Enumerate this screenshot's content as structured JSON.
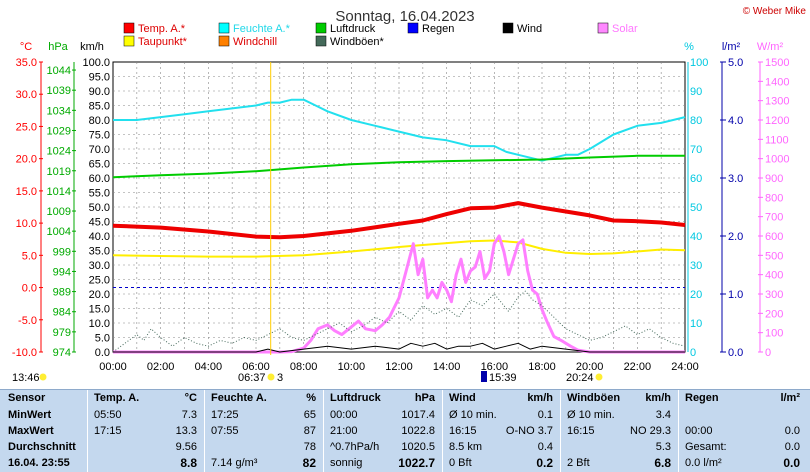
{
  "chart_data": {
    "type": "line",
    "title": "Sonntag, 16.04.2023",
    "credit": "© Weber Mike",
    "x_range_hours": [
      0,
      24
    ],
    "x_tick_labels": [
      "00:00",
      "02:00",
      "04:00",
      "06:00",
      "08:00",
      "10:00",
      "12:00",
      "14:00",
      "16:00",
      "18:00",
      "20:00",
      "22:00",
      "24:00"
    ],
    "axes": {
      "temp": {
        "unit": "°C",
        "range": [
          -10,
          35
        ],
        "ticks": [
          "35.0",
          "30.0",
          "25.0",
          "20.0",
          "15.0",
          "10.0",
          "5.0",
          "0.0",
          "-5.0",
          "-10.0"
        ],
        "color": "#ff0000"
      },
      "pressure": {
        "unit": "hPa",
        "range": [
          974,
          1046
        ],
        "ticks": [
          "1044",
          "1039",
          "1034",
          "1029",
          "1024",
          "1019",
          "1014",
          "1009",
          "1004",
          "999",
          "994",
          "989",
          "984",
          "979",
          "974"
        ],
        "color": "#00bb00"
      },
      "wind": {
        "unit": "km/h",
        "range": [
          0,
          100
        ],
        "ticks": [
          "100.0",
          "95.0",
          "90.0",
          "85.0",
          "80.0",
          "75.0",
          "70.0",
          "65.0",
          "60.0",
          "55.0",
          "50.0",
          "45.0",
          "40.0",
          "35.0",
          "30.0",
          "25.0",
          "20.0",
          "15.0",
          "10.0",
          "5.0",
          "0.0"
        ],
        "color": "#000000"
      },
      "humidity": {
        "unit": "%",
        "range": [
          0,
          100
        ],
        "ticks": [
          "100",
          "90",
          "80",
          "70",
          "60",
          "50",
          "40",
          "30",
          "20",
          "10",
          "0"
        ],
        "color": "#00c8e0"
      },
      "rain": {
        "unit": "l/m²",
        "range": [
          0,
          5
        ],
        "ticks": [
          "5.0",
          "4.0",
          "3.0",
          "2.0",
          "1.0",
          "0.0"
        ],
        "color": "#0000aa"
      },
      "solar": {
        "unit": "W/m²",
        "range": [
          0,
          1500
        ],
        "ticks": [
          "1500",
          "1400",
          "1300",
          "1200",
          "1100",
          "1000",
          "900",
          "800",
          "700",
          "600",
          "500",
          "400",
          "300",
          "200",
          "100",
          "0"
        ],
        "color": "#ff66ff"
      }
    },
    "legend": [
      {
        "label": "Temp. A.*",
        "color": "#ff0000"
      },
      {
        "label": "Feuchte A.*",
        "color": "#00ffff"
      },
      {
        "label": "Luftdruck",
        "color": "#00cc00"
      },
      {
        "label": "Regen",
        "color": "#0000ff"
      },
      {
        "label": "Wind",
        "color": "#000000"
      },
      {
        "label": "Solar",
        "color": "#ff88ff"
      },
      {
        "label": "Taupunkt*",
        "color": "#ffff00"
      },
      {
        "label": "Windchill",
        "color": "#ff8000"
      },
      {
        "label": "Windböen*",
        "color": "#446a5a"
      }
    ],
    "freezing_line_temp": 0,
    "series": [
      {
        "name": "Temp. A.*",
        "axis": "temp",
        "color": "#ee0000",
        "x": [
          0,
          2,
          4,
          6,
          7,
          8,
          10,
          12,
          13,
          14,
          15,
          16,
          17,
          18,
          19,
          20,
          21,
          22,
          23,
          24
        ],
        "values": [
          9.6,
          9.3,
          8.7,
          7.9,
          7.8,
          8.0,
          8.8,
          9.9,
          10.4,
          11.4,
          12.3,
          12.4,
          13.1,
          12.4,
          11.8,
          11.2,
          10.4,
          10.3,
          10.1,
          9.7
        ]
      },
      {
        "name": "Feuchte A.*",
        "axis": "humidity",
        "color": "#22e0ee",
        "x": [
          0,
          1,
          2,
          3,
          4,
          5,
          6,
          6.5,
          7,
          7.5,
          8,
          8.5,
          9,
          10,
          11,
          12,
          13,
          14,
          15,
          16,
          16.5,
          17,
          17.5,
          18,
          18.5,
          19,
          19.5,
          20,
          21,
          22,
          23,
          24
        ],
        "values": [
          80,
          80,
          81,
          82,
          83,
          84,
          85,
          86,
          86,
          87,
          87,
          85,
          83,
          80,
          78,
          76,
          74,
          73,
          71,
          71,
          69,
          68,
          67,
          66,
          67,
          68,
          68,
          70,
          75,
          78,
          79,
          81
        ]
      },
      {
        "name": "Luftdruck",
        "axis": "pressure",
        "color": "#00cc00",
        "x": [
          0,
          2,
          4,
          6,
          8,
          10,
          12,
          14,
          16,
          18,
          20,
          22,
          24
        ],
        "values": [
          1017.4,
          1017.9,
          1018.3,
          1018.9,
          1019.8,
          1020.6,
          1021.1,
          1021.4,
          1021.6,
          1021.8,
          1022.3,
          1022.7,
          1022.7
        ]
      },
      {
        "name": "Taupunkt*",
        "axis": "temp",
        "color": "#ffee00",
        "x": [
          0,
          2,
          4,
          6,
          8,
          10,
          12,
          13,
          14,
          15,
          16,
          17,
          18,
          19,
          20,
          21,
          22,
          23,
          24
        ],
        "values": [
          5.0,
          4.9,
          4.8,
          4.8,
          5.0,
          5.6,
          6.3,
          6.6,
          6.9,
          7.2,
          7.3,
          7.0,
          6.0,
          5.4,
          5.2,
          5.3,
          5.6,
          5.9,
          5.8
        ]
      },
      {
        "name": "Solar",
        "axis": "solar",
        "color": "#ff7fff",
        "x": [
          0,
          6.5,
          7,
          7.5,
          8,
          8.3,
          8.6,
          9,
          9.3,
          9.6,
          10,
          10.3,
          10.6,
          11,
          11.3,
          11.6,
          12,
          12.3,
          12.6,
          12.8,
          13,
          13.2,
          13.4,
          13.6,
          13.8,
          14,
          14.2,
          14.4,
          14.6,
          14.8,
          15,
          15.2,
          15.4,
          15.6,
          15.8,
          16,
          16.2,
          16.4,
          16.6,
          16.8,
          17,
          17.2,
          17.4,
          17.6,
          17.8,
          18,
          18.2,
          18.5,
          18.8,
          19.2,
          19.5,
          20,
          24
        ],
        "values": [
          0,
          0,
          0,
          2,
          20,
          60,
          120,
          140,
          110,
          90,
          130,
          160,
          120,
          110,
          140,
          180,
          280,
          420,
          560,
          400,
          480,
          280,
          320,
          280,
          360,
          320,
          260,
          400,
          480,
          360,
          420,
          440,
          520,
          380,
          420,
          560,
          600,
          520,
          400,
          480,
          560,
          580,
          420,
          320,
          300,
          220,
          160,
          80,
          60,
          30,
          10,
          0,
          0
        ]
      },
      {
        "name": "Windböen*",
        "axis": "wind",
        "color": "#466a5c",
        "style": "dotted",
        "x": [
          0,
          0.5,
          1,
          1.3,
          1.6,
          2,
          2.5,
          3,
          3.5,
          4,
          4.5,
          5,
          5.5,
          6,
          6.5,
          7,
          7.5,
          8,
          8.5,
          9,
          9.5,
          10,
          10.5,
          11,
          11.5,
          12,
          12.5,
          13,
          13.5,
          14,
          14.5,
          15,
          15.5,
          16,
          16.3,
          16.6,
          17,
          17.3,
          17.6,
          18,
          18.5,
          19,
          19.5,
          20,
          20.5,
          21,
          21.5,
          22,
          22.5,
          23,
          23.5,
          24
        ],
        "values": [
          0,
          3,
          6,
          4,
          8,
          5,
          2,
          5,
          3,
          2,
          4,
          3,
          5,
          4,
          6,
          8,
          5,
          4,
          6,
          8,
          10,
          7,
          9,
          12,
          10,
          14,
          11,
          16,
          13,
          15,
          12,
          18,
          16,
          20,
          17,
          14,
          19,
          21,
          18,
          16,
          12,
          8,
          6,
          4,
          5,
          7,
          9,
          6,
          8,
          5,
          3,
          2
        ]
      },
      {
        "name": "Wind",
        "axis": "wind",
        "color": "#000000",
        "x": [
          0,
          2,
          4,
          6,
          6.5,
          7,
          8,
          9,
          10,
          11,
          12,
          12.5,
          13,
          13.5,
          14,
          14.5,
          15,
          15.5,
          16,
          16.5,
          17,
          17.5,
          18,
          19,
          20,
          22,
          24
        ],
        "values": [
          0,
          0,
          0,
          0,
          1,
          0,
          1,
          2,
          1,
          2,
          1,
          3,
          2,
          3,
          1,
          2,
          2,
          3,
          1,
          2,
          3,
          1,
          2,
          1,
          0,
          0,
          0
        ]
      }
    ],
    "markers": {
      "sunrise": "06:37",
      "sunset": "20:24",
      "moon_phase": "3",
      "moon_time_1": "13:46",
      "moon_time_2": "15:39"
    }
  },
  "stats": {
    "sections": {
      "sensor": {
        "header": "Sensor",
        "rows": [
          "MinWert",
          "MaxWert",
          "Durchschnitt",
          "16.04. 23:55"
        ]
      },
      "temp": {
        "header": "Temp. A.",
        "unit": "°C",
        "rows": [
          [
            "05:50",
            "7.3"
          ],
          [
            "17:15",
            "13.3"
          ],
          [
            "",
            "9.56"
          ],
          [
            "",
            "8.8"
          ]
        ]
      },
      "humidity": {
        "header": "Feuchte A.",
        "unit": "%",
        "rows": [
          [
            "17:25",
            "65"
          ],
          [
            "07:55",
            "87"
          ],
          [
            "",
            "78"
          ],
          [
            "7.14 g/m³",
            "82"
          ]
        ]
      },
      "pressure": {
        "header": "Luftdruck",
        "unit": "hPa",
        "rows": [
          [
            "00:00",
            "1017.4"
          ],
          [
            "21:00",
            "1022.8"
          ],
          [
            "^0.7hPa/h",
            "1020.5"
          ],
          [
            "sonnig",
            "1022.7"
          ]
        ]
      },
      "wind": {
        "header": "Wind",
        "unit": "km/h",
        "rows": [
          [
            "Ø 10 min.",
            "0.1"
          ],
          [
            "16:15",
            "O-NO 3.7"
          ],
          [
            "8.5 km",
            "0.4"
          ],
          [
            "0 Bft",
            "0.2"
          ]
        ]
      },
      "gusts": {
        "header": "Windböen",
        "unit": "km/h",
        "rows": [
          [
            "Ø 10 min.",
            "3.4"
          ],
          [
            "16:15",
            "NO 29.3"
          ],
          [
            "",
            "5.3"
          ],
          [
            "2 Bft",
            "6.8"
          ]
        ]
      },
      "rain": {
        "header": "Regen",
        "unit": "l/m²",
        "rows": [
          [
            "",
            ""
          ],
          [
            "00:00",
            "0.0"
          ],
          [
            "Gesamt:",
            "0.0"
          ],
          [
            "0.0 l/m²",
            "0.0"
          ]
        ]
      }
    }
  }
}
